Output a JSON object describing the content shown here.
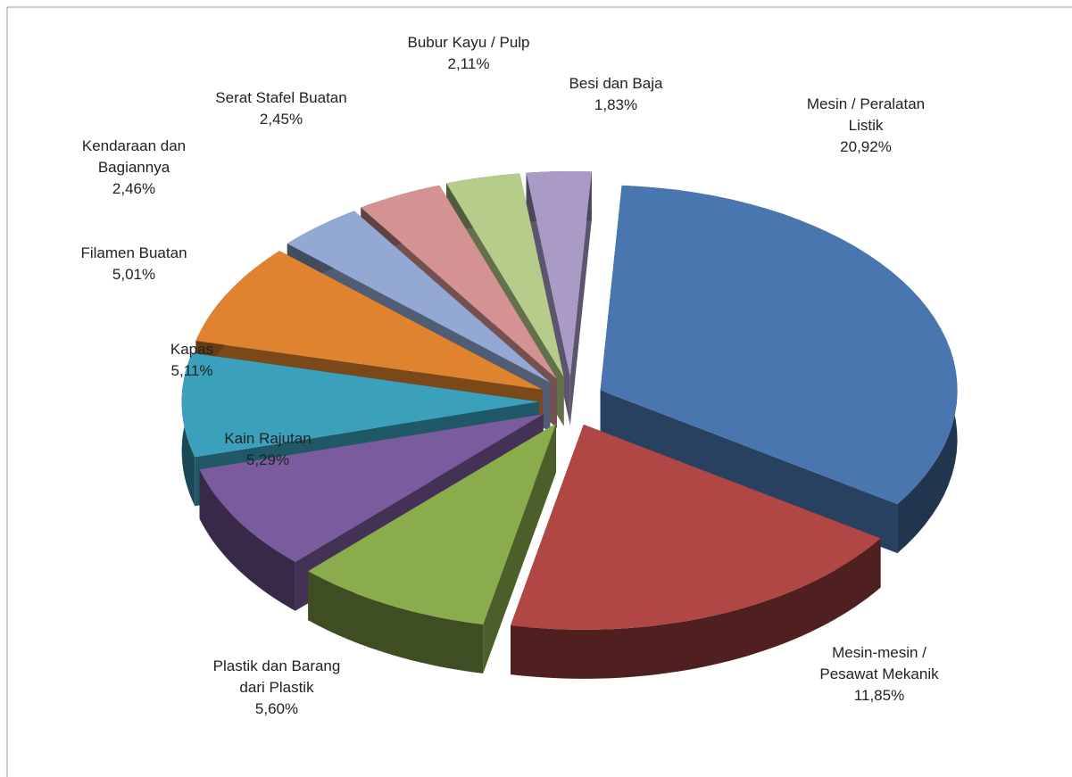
{
  "chart_data": {
    "type": "pie",
    "categories": [
      "Mesin / Peralatan Listik",
      "Mesin-mesin / Pesawat Mekanik",
      "Plastik dan Barang dari Plastik",
      "Kain Rajutan",
      "Kapas",
      "Filamen Buatan",
      "Kendaraan dan Bagiannya",
      "Serat Stafel Buatan",
      "Bubur Kayu / Pulp",
      "Besi dan Baja"
    ],
    "values": [
      20.92,
      11.85,
      5.6,
      5.29,
      5.11,
      5.01,
      2.46,
      2.45,
      2.11,
      1.83
    ],
    "value_labels": [
      "20,92%",
      "11,85%",
      "5,60%",
      "5,29%",
      "5,11%",
      "5,01%",
      "2,46%",
      "2,45%",
      "2,11%",
      "1,83%"
    ],
    "colors": [
      "#4a76b0",
      "#b04745",
      "#8bac4c",
      "#7a5b9d",
      "#3aa0bb",
      "#e0832f",
      "#93a9d3",
      "#d49292",
      "#b5cc8b",
      "#a99bc6"
    ]
  }
}
